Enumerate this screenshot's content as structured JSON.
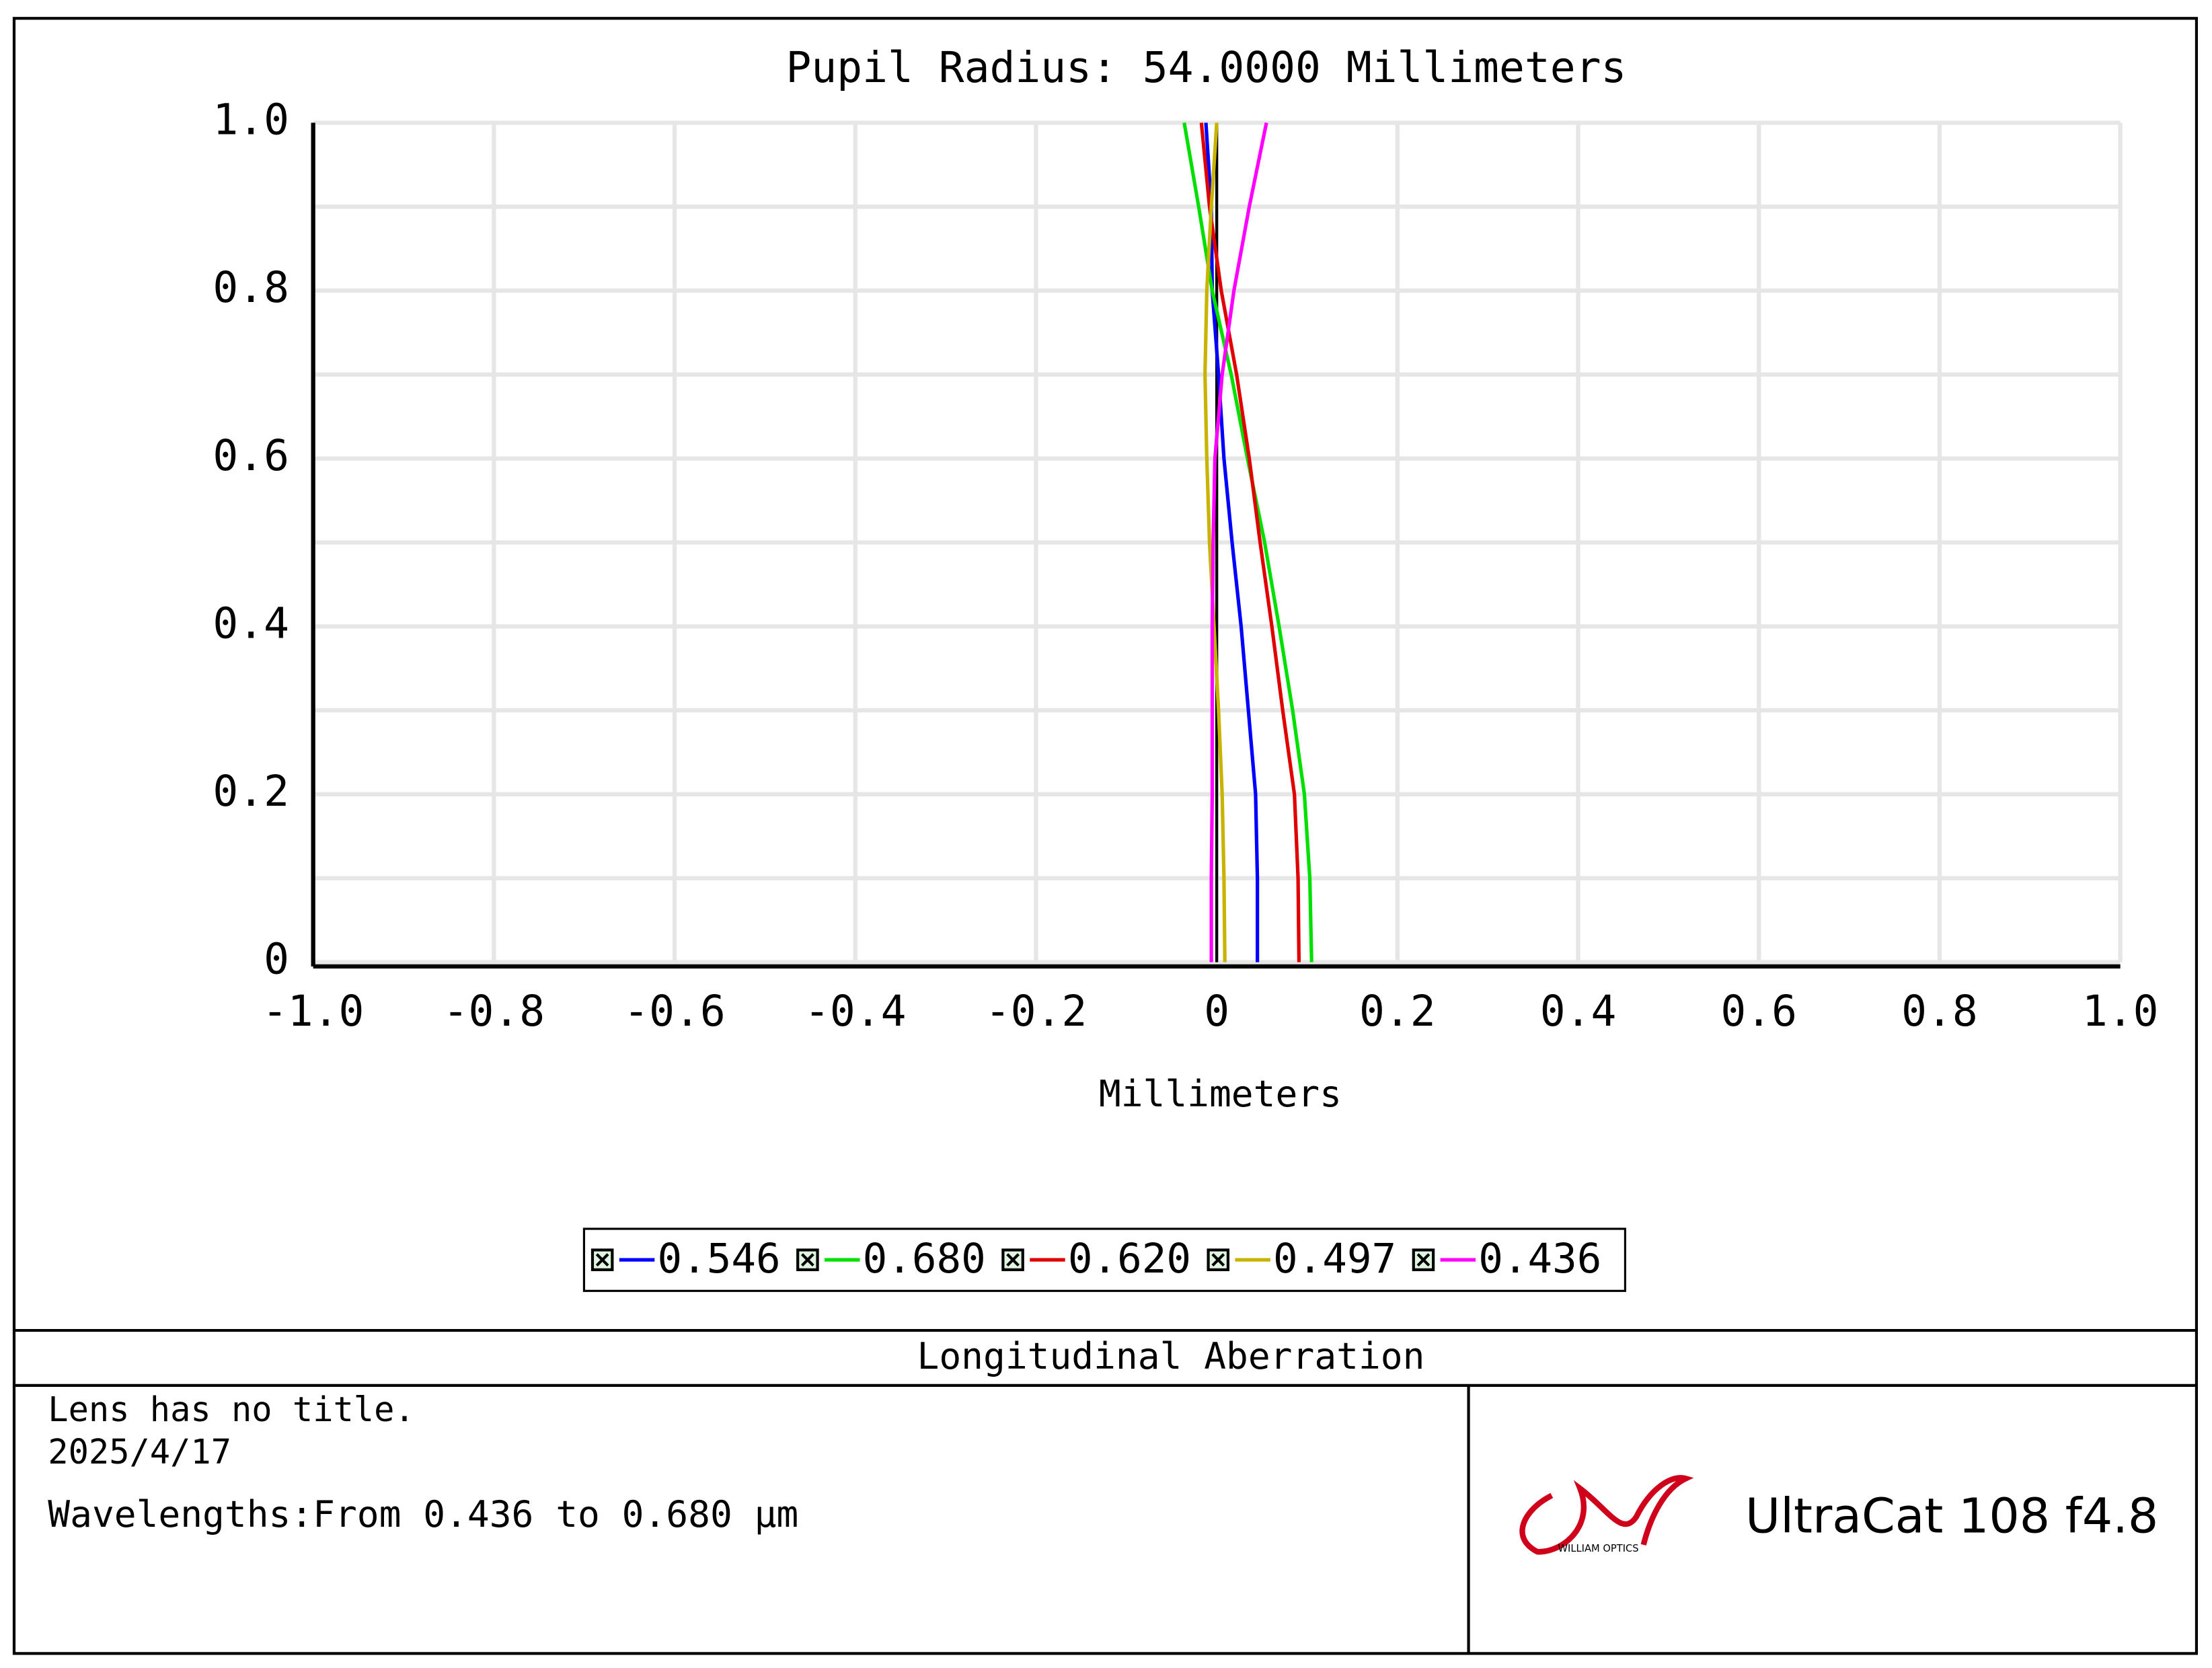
{
  "chart_data": {
    "type": "line",
    "title": "Pupil Radius: 54.0000 Millimeters",
    "x_label": "Millimeters",
    "xlim": [
      -1,
      1
    ],
    "ylim": [
      0,
      1
    ],
    "xticks": [
      {
        "value": -1,
        "label": "-1.0"
      },
      -0.8,
      -0.6,
      -0.4,
      -0.2,
      0,
      0.2,
      0.4,
      0.6,
      0.8,
      {
        "value": 1,
        "label": "1.0"
      }
    ],
    "yticks": [
      0,
      0.2,
      0.4,
      0.6,
      0.8,
      {
        "value": 1,
        "label": "1.0"
      }
    ],
    "y_minor_ticks": [
      0.1,
      0.3,
      0.5,
      0.7,
      0.9
    ],
    "grid": true,
    "y": [
      0,
      0.1,
      0.2,
      0.3,
      0.4,
      0.5,
      0.6,
      0.7,
      0.8,
      0.9,
      1
    ],
    "series": [
      {
        "name": "0.546",
        "color": "#0000ff",
        "values": [
          0.045,
          0.045,
          0.043,
          0.035,
          0.027,
          0.017,
          0.008,
          0.002,
          -0.005,
          -0.006,
          -0.012
        ]
      },
      {
        "name": "0.680",
        "color": "#00e000",
        "values": [
          0.105,
          0.103,
          0.097,
          0.084,
          0.069,
          0.053,
          0.034,
          0.016,
          -0.005,
          -0.02,
          -0.036
        ]
      },
      {
        "name": "0.620",
        "color": "#e00000",
        "values": [
          0.091,
          0.09,
          0.086,
          0.073,
          0.061,
          0.048,
          0.036,
          0.022,
          0.005,
          -0.008,
          -0.017
        ]
      },
      {
        "name": "0.497",
        "color": "#c8b400",
        "values": [
          0.009,
          0.008,
          0.006,
          0.002,
          -0.003,
          -0.008,
          -0.011,
          -0.013,
          -0.011,
          -0.006,
          0
        ]
      },
      {
        "name": "0.436",
        "color": "#ff00ff",
        "values": [
          -0.006,
          -0.006,
          -0.005,
          -0.005,
          -0.005,
          -0.004,
          -0.002,
          0.006,
          0.019,
          0.036,
          0.055
        ]
      }
    ]
  },
  "footer": {
    "caption": "Longitudinal Aberration",
    "notes": [
      "Lens has no title.",
      "2025/4/17",
      "Wavelengths:From 0.436 to 0.680 µm"
    ],
    "logo_text": "WILLIAM OPTICS",
    "product": "UltraCat 108 f4.8"
  }
}
